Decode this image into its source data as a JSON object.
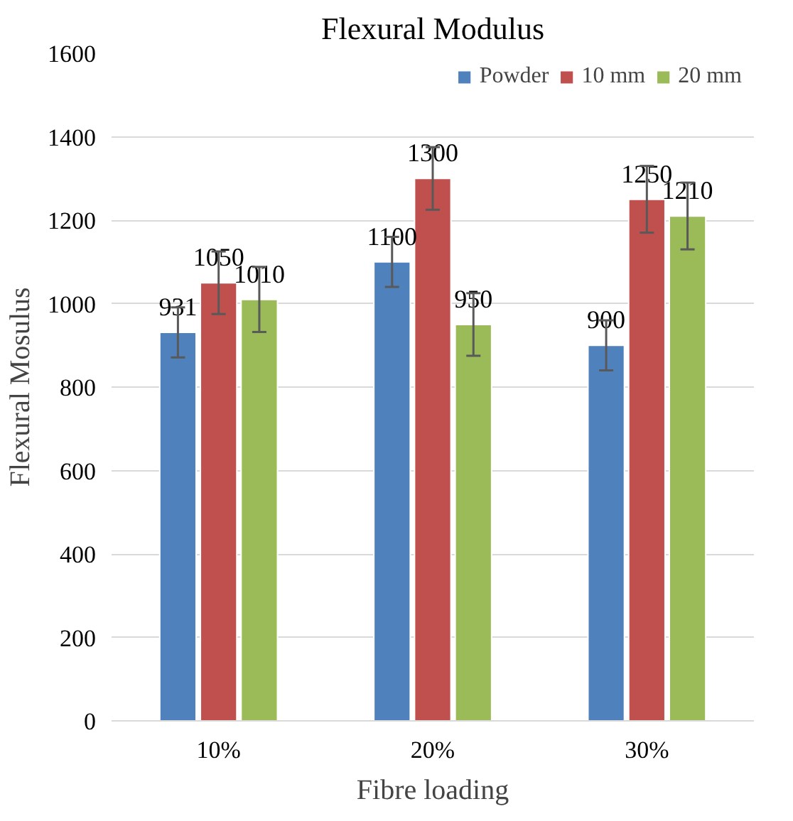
{
  "chart_data": {
    "type": "bar",
    "title": "Flexural Modulus",
    "xlabel": "Fibre loading",
    "ylabel": "Flexural Mosulus",
    "categories": [
      "10%",
      "20%",
      "30%"
    ],
    "series": [
      {
        "name": "Powder",
        "color": "#4f81bd",
        "values": [
          931,
          1100,
          900
        ],
        "errors": [
          60,
          60,
          60
        ]
      },
      {
        "name": "10 mm",
        "color": "#c0504d",
        "values": [
          1050,
          1300,
          1250
        ],
        "errors": [
          75,
          75,
          80
        ]
      },
      {
        "name": "20 mm",
        "color": "#9bbb59",
        "values": [
          1010,
          950,
          1210
        ],
        "errors": [
          78,
          75,
          80
        ]
      }
    ],
    "ylim": [
      0,
      1600
    ],
    "yticks": [
      0,
      200,
      400,
      600,
      800,
      1000,
      1200,
      1400,
      1600
    ],
    "grid": "y",
    "legend": "top right",
    "data_labels": true
  }
}
